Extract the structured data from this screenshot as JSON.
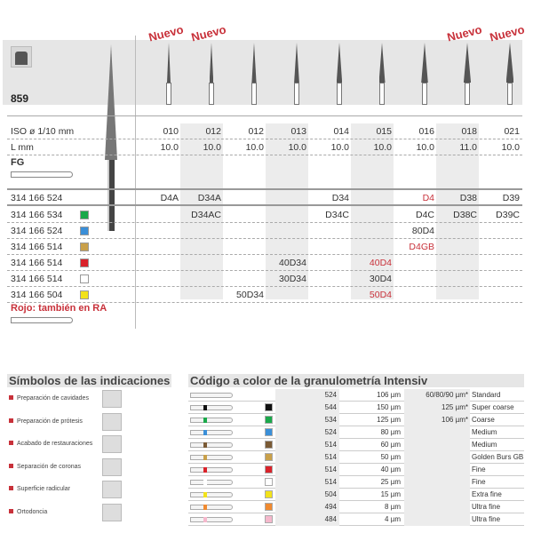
{
  "product": {
    "number": "859",
    "shank_type": "FG",
    "new_label": "Nuevo",
    "red_note": "Rojo: también en RA"
  },
  "header_rows": {
    "iso_label": "ISO ø 1/10 mm",
    "iso": [
      "010",
      "012",
      "012",
      "013",
      "014",
      "015",
      "016",
      "018",
      "021"
    ],
    "l_label": "L mm",
    "l": [
      "10.0",
      "10.0",
      "10.0",
      "10.0",
      "10.0",
      "10.0",
      "10.0",
      "11.0",
      "10.0"
    ],
    "new_columns": [
      0,
      1,
      7,
      8
    ]
  },
  "rows": [
    {
      "ref": "314 166 524",
      "color": null,
      "cells": [
        "D4A",
        "D34A",
        "",
        "",
        "D34",
        "",
        "D4",
        "D38",
        "D39"
      ],
      "red": [
        6
      ]
    },
    {
      "ref": "314 166 534",
      "color": "#1aa84a",
      "cells": [
        "",
        "D34AC",
        "",
        "",
        "D34C",
        "",
        "D4C",
        "D38C",
        "D39C"
      ],
      "red": []
    },
    {
      "ref": "314 166 524",
      "color": "#3a8fd8",
      "cells": [
        "",
        "",
        "",
        "",
        "",
        "",
        "80D4",
        "",
        ""
      ],
      "red": []
    },
    {
      "ref": "314 166 514",
      "color": "#c9a04a",
      "cells": [
        "",
        "",
        "",
        "",
        "",
        "",
        "D4GB",
        "",
        ""
      ],
      "red": [
        6
      ]
    },
    {
      "ref": "314 166 514",
      "color": "#d9222a",
      "cells": [
        "",
        "",
        "",
        "40D34",
        "",
        "40D4",
        "",
        "",
        ""
      ],
      "red": [
        5
      ]
    },
    {
      "ref": "314 166 514",
      "color": "#ffffff",
      "cells": [
        "",
        "",
        "",
        "30D34",
        "",
        "30D4",
        "",
        "",
        ""
      ],
      "red": []
    },
    {
      "ref": "314 166 504",
      "color": "#f2e21a",
      "cells": [
        "",
        "",
        "50D34",
        "",
        "",
        "50D4",
        "",
        "",
        ""
      ],
      "red": [
        5
      ]
    }
  ],
  "indications": {
    "title": "Símbolos de las indicaciones",
    "items": [
      "Preparación de cavidades",
      "Preparación de prótesis",
      "Acabado de restauraciones",
      "Separación de coronas",
      "Superficie radicular",
      "Ortodoncia"
    ]
  },
  "grit": {
    "title": "Código a color de la granulometría Intensiv",
    "rows": [
      {
        "color": null,
        "code": "524",
        "size": "106 µm",
        "extra": "60/80/90 µm*",
        "name": "Standard"
      },
      {
        "color": "#111111",
        "code": "544",
        "size": "150 µm",
        "extra": "125 µm*",
        "name": "Super coarse"
      },
      {
        "color": "#1aa84a",
        "code": "534",
        "size": "125 µm",
        "extra": "106 µm*",
        "name": "Coarse"
      },
      {
        "color": "#3a8fd8",
        "code": "524",
        "size": "80 µm",
        "extra": "",
        "name": "Medium"
      },
      {
        "color": "#7a5a35",
        "code": "514",
        "size": "60 µm",
        "extra": "",
        "name": "Medium"
      },
      {
        "color": "#c9a04a",
        "code": "514",
        "size": "50 µm",
        "extra": "",
        "name": "Golden Burs GB"
      },
      {
        "color": "#d9222a",
        "code": "514",
        "size": "40 µm",
        "extra": "",
        "name": "Fine"
      },
      {
        "color": "#ffffff",
        "code": "514",
        "size": "25 µm",
        "extra": "",
        "name": "Fine"
      },
      {
        "color": "#f2e21a",
        "code": "504",
        "size": "15 µm",
        "extra": "",
        "name": "Extra fine"
      },
      {
        "color": "#f08a30",
        "code": "494",
        "size": "8 µm",
        "extra": "",
        "name": "Ultra fine"
      },
      {
        "color": "#f5b8cc",
        "code": "484",
        "size": "4 µm",
        "extra": "",
        "name": "Ultra fine"
      }
    ]
  }
}
